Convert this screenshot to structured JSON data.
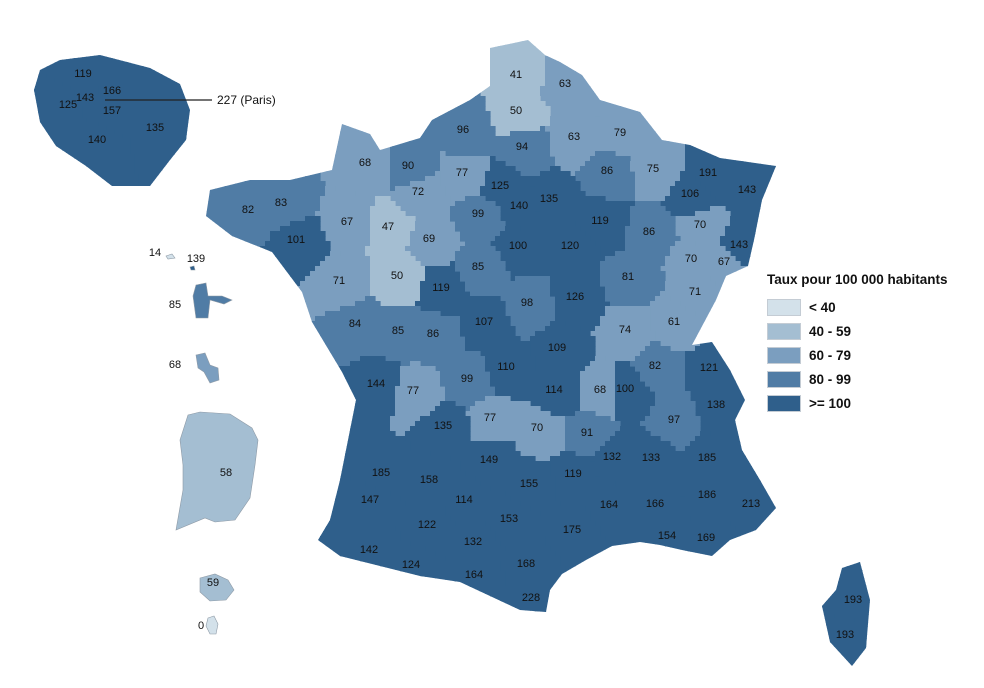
{
  "legend": {
    "title": "Taux pour 100 000 habitants",
    "items": [
      {
        "label": "< 40",
        "min": 0,
        "color": "#d3e1ea"
      },
      {
        "label": "40 - 59",
        "min": 40,
        "color": "#a4bed2"
      },
      {
        "label": "60 - 79",
        "min": 60,
        "color": "#7b9ebf"
      },
      {
        "label": "80 - 99",
        "min": 80,
        "color": "#507ca5"
      },
      {
        "label": ">= 100",
        "min": 100,
        "color": "#2f5f8b"
      }
    ]
  },
  "mainland": [
    41,
    63,
    50,
    96,
    94,
    63,
    79,
    68,
    90,
    77,
    86,
    75,
    191,
    143,
    106,
    72,
    125,
    140,
    135,
    82,
    83,
    67,
    47,
    69,
    99,
    119,
    70,
    86,
    101,
    100,
    120,
    143,
    70,
    67,
    71,
    50,
    119,
    85,
    98,
    126,
    81,
    71,
    61,
    84,
    85,
    86,
    107,
    74,
    109,
    144,
    77,
    99,
    110,
    114,
    68,
    100,
    82,
    121,
    138,
    97,
    77,
    70,
    91,
    135,
    185,
    149,
    119,
    132,
    133,
    185,
    155,
    158,
    147,
    114,
    164,
    166,
    186,
    213,
    122,
    153,
    175,
    154,
    169,
    142,
    132,
    124,
    168,
    164,
    228
  ],
  "corsica": [
    193,
    193
  ],
  "ile_de_france": [
    119,
    166,
    143,
    125,
    157,
    135,
    140
  ],
  "paris_callout": {
    "value": 227,
    "label": "227 (Paris)"
  },
  "overseas": [
    14,
    139,
    85,
    68,
    58,
    59,
    0
  ]
}
